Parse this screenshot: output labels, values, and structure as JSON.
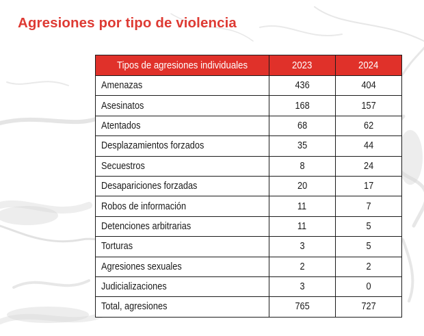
{
  "title": "Agresiones por tipo de violencia",
  "table": {
    "headers": [
      "Tipos de agresiones individuales",
      "2023",
      "2024"
    ],
    "rows": [
      {
        "type": "Amenazas",
        "y2023": "436",
        "y2024": "404"
      },
      {
        "type": "Asesinatos",
        "y2023": "168",
        "y2024": "157"
      },
      {
        "type": "Atentados",
        "y2023": "68",
        "y2024": "62"
      },
      {
        "type": "Desplazamientos forzados",
        "y2023": "35",
        "y2024": "44"
      },
      {
        "type": "Secuestros",
        "y2023": "8",
        "y2024": "24"
      },
      {
        "type": "Desapariciones forzadas",
        "y2023": "20",
        "y2024": "17"
      },
      {
        "type": "Robos de información",
        "y2023": "11",
        "y2024": "7"
      },
      {
        "type": "Detenciones arbitrarias",
        "y2023": "11",
        "y2024": "5"
      },
      {
        "type": "Torturas",
        "y2023": "3",
        "y2024": "5"
      },
      {
        "type": "Agresiones sexuales",
        "y2023": "2",
        "y2024": "2"
      },
      {
        "type": "Judicializaciones",
        "y2023": "3",
        "y2024": "0"
      },
      {
        "type": "Total, agresiones",
        "y2023": "765",
        "y2024": "727"
      }
    ]
  },
  "colors": {
    "accent": "#de3a33",
    "header_bg": "#e0312a",
    "texture": "#c9c9c9"
  }
}
